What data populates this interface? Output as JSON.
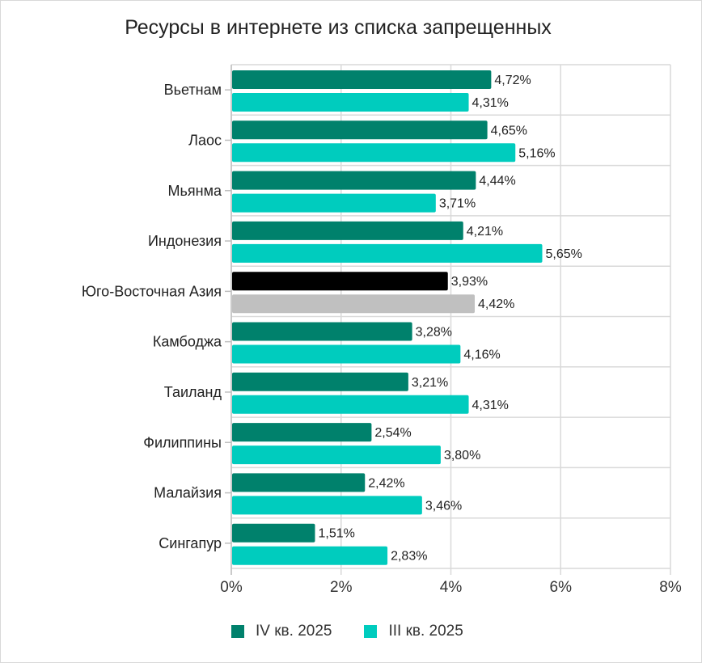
{
  "chart_data": {
    "type": "bar",
    "orientation": "horizontal",
    "title": "Ресурсы в интернете из списка запрещенных",
    "categories": [
      "Вьетнам",
      "Лаос",
      "Мьянма",
      "Индонезия",
      "Юго-Восточная Азия",
      "Камбоджа",
      "Таиланд",
      "Филиппины",
      "Малайзия",
      "Сингапур"
    ],
    "series": [
      {
        "name": "IV кв. 2025",
        "color": "#00816c",
        "values": [
          4.72,
          4.65,
          4.44,
          4.21,
          3.93,
          3.28,
          3.21,
          2.54,
          2.42,
          1.51
        ],
        "labels": [
          "4,72%",
          "4,65%",
          "4,44%",
          "4,21%",
          "3,93%",
          "3,28%",
          "3,21%",
          "2,54%",
          "2,42%",
          "1,51%"
        ]
      },
      {
        "name": "III кв. 2025",
        "color": "#00ccbe",
        "values": [
          4.31,
          5.16,
          3.71,
          5.65,
          4.42,
          4.16,
          4.31,
          3.8,
          3.46,
          2.83
        ],
        "labels": [
          "4,31%",
          "5,16%",
          "3,71%",
          "5,65%",
          "4,42%",
          "4,16%",
          "4,31%",
          "3,80%",
          "3,46%",
          "2,83%"
        ]
      }
    ],
    "highlight": {
      "category": "Юго-Восточная Азия",
      "colors": [
        "#000000",
        "#c0c0c0"
      ]
    },
    "xlim": [
      0,
      8
    ],
    "xticks": [
      "0%",
      "2%",
      "4%",
      "6%",
      "8%"
    ],
    "xlabel": "",
    "ylabel": "",
    "grid": true,
    "legend": "bottom"
  }
}
